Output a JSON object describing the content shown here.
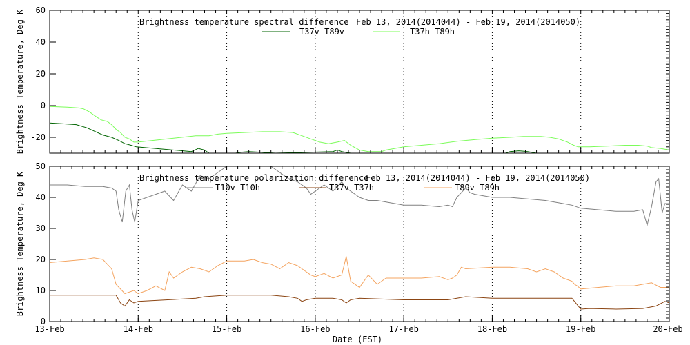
{
  "x_ticks": [
    "13-Feb",
    "14-Feb",
    "15-Feb",
    "16-Feb",
    "17-Feb",
    "18-Feb",
    "19-Feb",
    "20-Feb"
  ],
  "xlabel": "Date (EST)",
  "chart_data": [
    {
      "type": "line",
      "title_left": "Brightness temperature spectral difference",
      "title_right": "Feb 13, 2014(2014044) - Feb 19, 2014(2014050)",
      "ylabel": "Brightness Temperature, Deg K",
      "ylim": [
        -30,
        60
      ],
      "yticks": [
        -20,
        0,
        20,
        40,
        60
      ],
      "xlim": [
        13,
        20
      ],
      "grid": "dotted vertical",
      "legend_placement": "top-center",
      "series": [
        {
          "name": "T37v-T89v",
          "color": "#006400",
          "points": [
            [
              13.0,
              -11
            ],
            [
              13.15,
              -11.5
            ],
            [
              13.3,
              -12
            ],
            [
              13.42,
              -14
            ],
            [
              13.5,
              -16
            ],
            [
              13.6,
              -18.5
            ],
            [
              13.7,
              -20
            ],
            [
              13.78,
              -22
            ],
            [
              13.85,
              -24
            ],
            [
              13.92,
              -25
            ],
            [
              13.98,
              -26
            ],
            [
              14.6,
              -29
            ],
            [
              14.68,
              -27
            ],
            [
              14.75,
              -28
            ],
            [
              14.8,
              -30
            ],
            [
              15.1,
              -30
            ],
            [
              15.15,
              -29.5
            ],
            [
              15.25,
              -29
            ],
            [
              15.4,
              -29.5
            ],
            [
              15.55,
              -30
            ],
            [
              16.2,
              -29
            ],
            [
              16.25,
              -28
            ],
            [
              16.3,
              -29
            ],
            [
              16.4,
              -30
            ],
            [
              17.3,
              -30
            ],
            [
              18.15,
              -30
            ],
            [
              18.2,
              -29
            ],
            [
              18.3,
              -28.5
            ],
            [
              18.4,
              -29
            ],
            [
              18.5,
              -30
            ],
            [
              18.55,
              -30
            ]
          ]
        },
        {
          "name": "T37h-T89h",
          "color": "#7CFC5A",
          "points": [
            [
              13.0,
              -0.5
            ],
            [
              13.2,
              -1
            ],
            [
              13.33,
              -1.5
            ],
            [
              13.38,
              -2
            ],
            [
              13.45,
              -4
            ],
            [
              13.5,
              -6
            ],
            [
              13.58,
              -9
            ],
            [
              13.65,
              -10
            ],
            [
              13.7,
              -12
            ],
            [
              13.75,
              -15
            ],
            [
              13.8,
              -17
            ],
            [
              13.85,
              -20
            ],
            [
              13.9,
              -21
            ],
            [
              13.95,
              -23
            ],
            [
              14.0,
              -23
            ],
            [
              14.65,
              -19
            ],
            [
              14.8,
              -19
            ],
            [
              14.9,
              -18
            ],
            [
              15.0,
              -17.5
            ],
            [
              15.2,
              -17
            ],
            [
              15.4,
              -16.5
            ],
            [
              15.6,
              -16.5
            ],
            [
              15.75,
              -17
            ],
            [
              15.85,
              -19
            ],
            [
              15.95,
              -21
            ],
            [
              16.05,
              -23
            ],
            [
              16.15,
              -24
            ],
            [
              16.25,
              -23
            ],
            [
              16.33,
              -22
            ],
            [
              16.4,
              -25
            ],
            [
              16.5,
              -28
            ],
            [
              16.6,
              -29
            ],
            [
              16.75,
              -29
            ],
            [
              16.8,
              -28
            ],
            [
              16.9,
              -27
            ],
            [
              17.0,
              -26
            ],
            [
              17.2,
              -25
            ],
            [
              17.4,
              -24
            ],
            [
              17.6,
              -22.5
            ],
            [
              17.8,
              -21.5
            ],
            [
              18.0,
              -20.5
            ],
            [
              18.2,
              -20
            ],
            [
              18.35,
              -19.5
            ],
            [
              18.55,
              -19.5
            ],
            [
              18.65,
              -20
            ],
            [
              18.75,
              -21
            ],
            [
              18.85,
              -23
            ],
            [
              18.92,
              -25
            ],
            [
              18.97,
              -26
            ],
            [
              19.1,
              -26
            ],
            [
              19.3,
              -25.5
            ],
            [
              19.5,
              -25
            ],
            [
              19.65,
              -25
            ],
            [
              19.75,
              -25.5
            ],
            [
              19.8,
              -26.5
            ],
            [
              19.9,
              -27
            ],
            [
              20.0,
              -28
            ]
          ]
        }
      ]
    },
    {
      "type": "line",
      "title_left": "Brightness temperature polarization difference",
      "title_right": "Feb 13, 2014(2014044) - Feb 19, 2014(2014050)",
      "ylabel": "Brightness Temperature, Deg K",
      "ylim": [
        0,
        50
      ],
      "yticks": [
        0,
        10,
        20,
        30,
        40,
        50
      ],
      "xlim": [
        13,
        20
      ],
      "grid": "dotted vertical",
      "legend_placement": "top-center",
      "series": [
        {
          "name": "T10v-T10h",
          "color": "#808080",
          "points": [
            [
              13.0,
              44
            ],
            [
              13.2,
              44
            ],
            [
              13.4,
              43.5
            ],
            [
              13.6,
              43.5
            ],
            [
              13.7,
              43
            ],
            [
              13.75,
              42
            ],
            [
              13.78,
              36
            ],
            [
              13.82,
              32
            ],
            [
              13.86,
              42
            ],
            [
              13.9,
              44
            ],
            [
              13.93,
              36
            ],
            [
              13.96,
              32
            ],
            [
              14.0,
              39
            ],
            [
              14.1,
              40
            ],
            [
              14.3,
              42
            ],
            [
              14.4,
              39
            ],
            [
              14.5,
              44
            ],
            [
              14.6,
              42
            ],
            [
              14.7,
              47
            ],
            [
              14.8,
              46
            ],
            [
              14.9,
              48
            ],
            [
              15.0,
              50
            ],
            [
              15.5,
              50
            ],
            [
              15.6,
              48
            ],
            [
              15.7,
              46
            ],
            [
              15.8,
              45
            ],
            [
              15.9,
              43
            ],
            [
              15.95,
              41
            ],
            [
              16.0,
              42
            ],
            [
              16.1,
              44
            ],
            [
              16.2,
              42
            ],
            [
              16.3,
              45
            ],
            [
              16.35,
              43
            ],
            [
              16.45,
              41
            ],
            [
              16.5,
              40
            ],
            [
              16.6,
              39
            ],
            [
              16.7,
              39
            ],
            [
              16.8,
              38.5
            ],
            [
              16.9,
              38
            ],
            [
              17.0,
              37.5
            ],
            [
              17.2,
              37.5
            ],
            [
              17.4,
              37
            ],
            [
              17.5,
              37.5
            ],
            [
              17.55,
              37
            ],
            [
              17.6,
              40
            ],
            [
              17.7,
              43
            ],
            [
              17.75,
              41.5
            ],
            [
              17.8,
              41
            ],
            [
              18.0,
              40
            ],
            [
              18.2,
              40
            ],
            [
              18.4,
              39.5
            ],
            [
              18.6,
              39
            ],
            [
              18.8,
              38
            ],
            [
              18.9,
              37.5
            ],
            [
              19.0,
              36.5
            ],
            [
              19.2,
              36
            ],
            [
              19.4,
              35.5
            ],
            [
              19.6,
              35.5
            ],
            [
              19.7,
              36
            ],
            [
              19.75,
              31
            ],
            [
              19.8,
              37
            ],
            [
              19.85,
              45
            ],
            [
              19.88,
              46
            ],
            [
              19.92,
              35
            ],
            [
              19.95,
              38
            ],
            [
              20.0,
              38
            ]
          ]
        },
        {
          "name": "T37v-T37h",
          "color": "#8B4513",
          "points": [
            [
              13.0,
              8.5
            ],
            [
              13.5,
              8.5
            ],
            [
              13.75,
              8.5
            ],
            [
              13.8,
              6
            ],
            [
              13.85,
              5
            ],
            [
              13.9,
              7
            ],
            [
              13.95,
              6
            ],
            [
              14.0,
              6.5
            ],
            [
              14.65,
              7.5
            ],
            [
              14.75,
              8
            ],
            [
              15.0,
              8.5
            ],
            [
              15.5,
              8.5
            ],
            [
              15.7,
              8
            ],
            [
              15.8,
              7.5
            ],
            [
              15.85,
              6.5
            ],
            [
              15.9,
              7
            ],
            [
              16.0,
              7.5
            ],
            [
              16.2,
              7.5
            ],
            [
              16.3,
              7
            ],
            [
              16.35,
              6
            ],
            [
              16.4,
              7
            ],
            [
              16.5,
              7.5
            ],
            [
              17.0,
              7
            ],
            [
              17.5,
              7
            ],
            [
              17.6,
              7.5
            ],
            [
              17.7,
              8
            ],
            [
              18.0,
              7.5
            ],
            [
              18.5,
              7.5
            ],
            [
              18.9,
              7.5
            ],
            [
              19.0,
              4
            ],
            [
              19.1,
              4.2
            ],
            [
              19.4,
              4
            ],
            [
              19.7,
              4.2
            ],
            [
              19.85,
              5
            ],
            [
              19.95,
              6.5
            ],
            [
              20.0,
              6
            ]
          ]
        },
        {
          "name": "T89v-T89h",
          "color": "#F4A460",
          "points": [
            [
              13.0,
              19
            ],
            [
              13.2,
              19.5
            ],
            [
              13.4,
              20
            ],
            [
              13.5,
              20.5
            ],
            [
              13.6,
              20
            ],
            [
              13.7,
              17
            ],
            [
              13.75,
              12
            ],
            [
              13.85,
              9
            ],
            [
              13.95,
              10
            ],
            [
              14.0,
              9
            ],
            [
              14.1,
              10
            ],
            [
              14.2,
              11.5
            ],
            [
              14.3,
              10
            ],
            [
              14.35,
              16
            ],
            [
              14.4,
              14
            ],
            [
              14.5,
              16
            ],
            [
              14.6,
              17.5
            ],
            [
              14.7,
              17
            ],
            [
              14.8,
              16
            ],
            [
              14.9,
              18
            ],
            [
              15.0,
              19.5
            ],
            [
              15.2,
              19.5
            ],
            [
              15.3,
              20
            ],
            [
              15.4,
              19
            ],
            [
              15.5,
              18.5
            ],
            [
              15.6,
              17
            ],
            [
              15.7,
              19
            ],
            [
              15.8,
              18
            ],
            [
              15.85,
              17
            ],
            [
              15.95,
              15
            ],
            [
              16.0,
              14.5
            ],
            [
              16.1,
              15.5
            ],
            [
              16.2,
              14
            ],
            [
              16.3,
              15
            ],
            [
              16.35,
              21
            ],
            [
              16.4,
              13
            ],
            [
              16.5,
              11
            ],
            [
              16.6,
              15
            ],
            [
              16.7,
              12
            ],
            [
              16.8,
              14
            ],
            [
              17.0,
              14
            ],
            [
              17.2,
              14
            ],
            [
              17.4,
              14.5
            ],
            [
              17.5,
              13.5
            ],
            [
              17.55,
              14
            ],
            [
              17.6,
              15
            ],
            [
              17.65,
              17.5
            ],
            [
              17.7,
              17
            ],
            [
              18.0,
              17.5
            ],
            [
              18.2,
              17.5
            ],
            [
              18.4,
              17
            ],
            [
              18.5,
              16
            ],
            [
              18.6,
              17
            ],
            [
              18.7,
              16
            ],
            [
              18.8,
              14
            ],
            [
              18.9,
              13
            ],
            [
              18.93,
              12
            ],
            [
              18.96,
              11.5
            ],
            [
              19.0,
              10.5
            ],
            [
              19.2,
              11
            ],
            [
              19.4,
              11.5
            ],
            [
              19.6,
              11.5
            ],
            [
              19.8,
              12.5
            ],
            [
              19.9,
              11
            ],
            [
              20.0,
              11
            ]
          ]
        }
      ]
    }
  ]
}
